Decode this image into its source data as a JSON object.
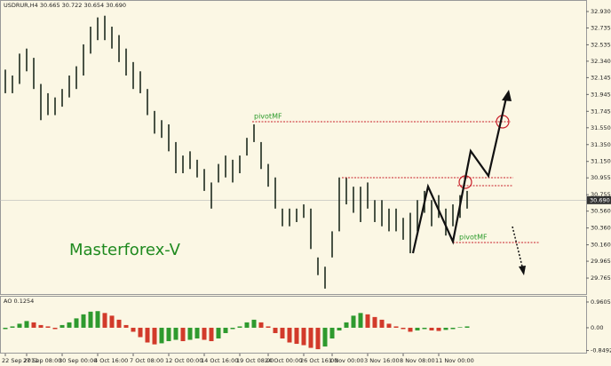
{
  "chart_data": {
    "type": "ohlc",
    "title": "USDRUR,H4  30.665 30.722 30.654 30.690",
    "annotations": [
      "Masterforex-V",
      "pivotMF",
      "pivotMF"
    ],
    "color": "#1e2a1e",
    "xlim": [
      -0.75,
      81.75
    ],
    "ylim": [
      29.586,
      33.014
    ],
    "xticks": [
      {
        "value": 0,
        "label": "22 Sep 2011"
      },
      {
        "value": 3,
        "label": "27 Sep 08:00"
      },
      {
        "value": 8,
        "label": "30 Sep 00:00"
      },
      {
        "value": 13,
        "label": "4 Oct 16:00"
      },
      {
        "value": 18,
        "label": "7 Oct 08:00"
      },
      {
        "value": 23,
        "label": "12 Oct 00:00"
      },
      {
        "value": 28,
        "label": "14 Oct 16:00"
      },
      {
        "value": 33,
        "label": "19 Oct 08:00"
      },
      {
        "value": 37,
        "label": "24 Oct 00:00"
      },
      {
        "value": 42,
        "label": "26 Oct 16:00"
      },
      {
        "value": 46,
        "label": "1 Nov 00:00"
      },
      {
        "value": 51,
        "label": "3 Nov 16:00"
      },
      {
        "value": 56,
        "label": "8 Nov 08:00"
      },
      {
        "value": 61,
        "label": "11 Nov 00:00"
      }
    ],
    "yticks": [
      {
        "value": 32.93,
        "label": "32.930"
      },
      {
        "value": 32.735,
        "label": "32.735"
      },
      {
        "value": 32.535,
        "label": "32.535"
      },
      {
        "value": 32.34,
        "label": "32.340"
      },
      {
        "value": 32.145,
        "label": "32.145"
      },
      {
        "value": 31.945,
        "label": "31.945"
      },
      {
        "value": 31.745,
        "label": "31.745"
      },
      {
        "value": 31.55,
        "label": "31.550"
      },
      {
        "value": 31.35,
        "label": "31.350"
      },
      {
        "value": 31.15,
        "label": "31.150"
      },
      {
        "value": 30.955,
        "label": "30.955"
      },
      {
        "value": 30.755,
        "label": "30.755"
      },
      {
        "value": 30.56,
        "label": "30.560"
      },
      {
        "value": 30.36,
        "label": "30.360"
      },
      {
        "value": 30.16,
        "label": "30.160"
      },
      {
        "value": 29.965,
        "label": "29.965"
      },
      {
        "value": 29.765,
        "label": "29.765"
      }
    ],
    "last_price": {
      "value": 30.69,
      "label": "30.690"
    },
    "high": [
      32.24,
      32.17,
      32.43,
      32.49,
      32.38,
      32.07,
      31.96,
      31.91,
      32.01,
      32.17,
      32.28,
      32.54,
      32.75,
      32.86,
      32.88,
      32.75,
      32.65,
      32.49,
      32.33,
      32.22,
      32.01,
      31.75,
      31.64,
      31.59,
      31.38,
      31.22,
      31.27,
      31.17,
      31.06,
      30.9,
      31.12,
      31.22,
      31.17,
      31.22,
      31.43,
      31.59,
      31.38,
      31.12,
      30.96,
      30.59,
      30.59,
      30.59,
      30.64,
      30.59,
      30.01,
      29.9,
      30.32,
      30.96,
      30.96,
      30.85,
      30.85,
      30.9,
      30.69,
      30.69,
      30.59,
      30.59,
      30.48,
      30.54,
      30.69,
      30.8,
      30.69,
      30.75,
      30.59,
      30.64,
      30.75,
      30.8
    ],
    "low": [
      31.96,
      31.96,
      32.07,
      32.22,
      32.01,
      31.64,
      31.7,
      31.7,
      31.8,
      31.91,
      32.01,
      32.17,
      32.43,
      32.59,
      32.59,
      32.49,
      32.33,
      32.17,
      32.01,
      31.96,
      31.7,
      31.48,
      31.43,
      31.27,
      31.01,
      31.01,
      31.06,
      30.96,
      30.8,
      30.59,
      30.9,
      30.96,
      30.9,
      31.01,
      31.22,
      31.38,
      31.06,
      30.85,
      30.59,
      30.38,
      30.38,
      30.43,
      30.48,
      30.11,
      29.8,
      29.64,
      30.01,
      30.32,
      30.64,
      30.54,
      30.43,
      30.59,
      30.43,
      30.38,
      30.32,
      30.32,
      30.22,
      30.06,
      30.32,
      30.54,
      30.38,
      30.48,
      30.27,
      30.38,
      30.48,
      30.59
    ],
    "indicator": {
      "label": "AO 0.1254",
      "up_color": "#2e9a2e",
      "down_color": "#d23a2a",
      "y2lim": [
        -0.93,
        1.125
      ],
      "y2ticks": [
        {
          "value": 0.9605,
          "label": "0.9605"
        },
        {
          "value": 0,
          "label": "0.00"
        },
        {
          "value": -0.8492,
          "label": "-0.8492"
        }
      ],
      "values": [
        -0.05,
        0.05,
        0.15,
        0.25,
        0.2,
        0.1,
        0.05,
        -0.05,
        0.1,
        0.2,
        0.35,
        0.5,
        0.6,
        0.62,
        0.55,
        0.45,
        0.3,
        0.1,
        -0.15,
        -0.35,
        -0.55,
        -0.62,
        -0.58,
        -0.5,
        -0.45,
        -0.5,
        -0.45,
        -0.4,
        -0.45,
        -0.5,
        -0.4,
        -0.2,
        -0.05,
        0.05,
        0.2,
        0.3,
        0.2,
        0.05,
        -0.2,
        -0.4,
        -0.55,
        -0.6,
        -0.65,
        -0.75,
        -0.8,
        -0.7,
        -0.4,
        -0.1,
        0.2,
        0.45,
        0.55,
        0.5,
        0.4,
        0.3,
        0.15,
        0.05,
        -0.05,
        -0.15,
        -0.1,
        -0.05,
        -0.1,
        -0.12,
        -0.08,
        -0.05,
        0.02,
        0.05
      ]
    }
  }
}
